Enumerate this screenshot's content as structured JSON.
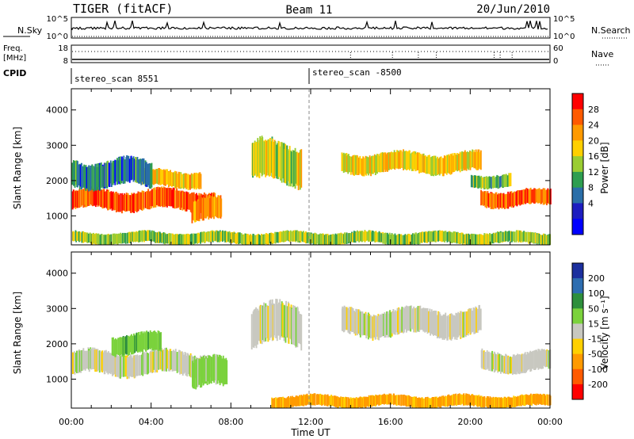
{
  "header": {
    "radar": "TIGER (fitACF)",
    "beam": "Beam 11",
    "date": "20/Jun/2010"
  },
  "panels": {
    "nsky": {
      "label": "N.Sky",
      "tick_top": "10^5",
      "tick_bottom": "10^0"
    },
    "nsearch": {
      "label": "N.Search",
      "tick_top": "10^5",
      "tick_bottom": "10^0"
    },
    "freq": {
      "label_line1": "Freq.",
      "label_line2": "[MHz]",
      "tick_top": "18",
      "tick_bottom": "8"
    },
    "nave": {
      "label": "Nave",
      "tick_top": "60",
      "tick_bottom": "0"
    },
    "cpid": {
      "label": "CPID",
      "entries": [
        {
          "time_h": 0.0,
          "text": "stereo_scan 8551"
        },
        {
          "time_h": 12.0,
          "text": "stereo_scan -8500"
        }
      ]
    }
  },
  "colorbars": {
    "power": {
      "label": "Power [dB]",
      "ticks": [
        "28",
        "24",
        "20",
        "16",
        "12",
        "8",
        "4"
      ],
      "colors": [
        "#ff0000",
        "#ff5a00",
        "#ff9a00",
        "#ffd000",
        "#9acd32",
        "#2e9e50",
        "#2a6ea8",
        "#1d1dc0",
        "#0000ff"
      ]
    },
    "velocity": {
      "label": "Velocity [m s⁻¹]",
      "ticks": [
        "200",
        "100",
        "50",
        "15",
        "-15",
        "-50",
        "-100",
        "-200"
      ],
      "colors": [
        "#1b2f9e",
        "#2d6db0",
        "#2e8f3c",
        "#7bd23c",
        "#c8c8c0",
        "#ffd000",
        "#ff9a00",
        "#ff5a00",
        "#ff0000"
      ]
    }
  },
  "chart_data": [
    {
      "type": "heatmap",
      "title": "Power",
      "ylabel": "Slant Range [km]",
      "xlim_hours": [
        0,
        24
      ],
      "ylim_km": [
        180,
        4600
      ],
      "yticks": [
        "1000",
        "2000",
        "3000",
        "4000"
      ],
      "units": "dB",
      "regions": [
        {
          "t0": 0.0,
          "t1": 7.2,
          "r_lo": 1150,
          "r_hi": 1750,
          "value": 26
        },
        {
          "t0": 3.5,
          "t1": 6.5,
          "r_lo": 1800,
          "r_hi": 2300,
          "value": 20
        },
        {
          "t0": 6.0,
          "t1": 7.5,
          "r_lo": 800,
          "r_hi": 1500,
          "value": 22
        },
        {
          "t0": 0.0,
          "t1": 4.0,
          "r_lo": 1800,
          "r_hi": 2600,
          "value": 8
        },
        {
          "t0": 9.0,
          "t1": 11.5,
          "r_lo": 1900,
          "r_hi": 3100,
          "value": 16
        },
        {
          "t0": 13.5,
          "t1": 20.5,
          "r_lo": 2200,
          "r_hi": 2800,
          "value": 18
        },
        {
          "t0": 20.5,
          "t1": 24.0,
          "r_lo": 1250,
          "r_hi": 1750,
          "value": 26
        },
        {
          "t0": 20.0,
          "t1": 22.0,
          "r_lo": 1800,
          "r_hi": 2200,
          "value": 12
        },
        {
          "t0": 0.0,
          "t1": 24.0,
          "r_lo": 200,
          "r_hi": 550,
          "value": 14
        }
      ]
    },
    {
      "type": "heatmap",
      "title": "Velocity",
      "ylabel": "Slant Range [km]",
      "xlabel": "Time UT",
      "xlim_hours": [
        0,
        24
      ],
      "ylim_km": [
        180,
        4600
      ],
      "yticks": [
        "1000",
        "2000",
        "3000",
        "4000"
      ],
      "xticks": [
        "00:00",
        "04:00",
        "08:00",
        "12:00",
        "16:00",
        "20:00",
        "00:00"
      ],
      "units": "m s-1",
      "regions": [
        {
          "t0": 0.0,
          "t1": 7.0,
          "r_lo": 1100,
          "r_hi": 1800,
          "value": 0
        },
        {
          "t0": 2.0,
          "t1": 4.5,
          "r_lo": 1700,
          "r_hi": 2300,
          "value": 35
        },
        {
          "t0": 6.0,
          "t1": 7.8,
          "r_lo": 700,
          "r_hi": 1600,
          "value": 30
        },
        {
          "t0": 9.0,
          "t1": 11.5,
          "r_lo": 1900,
          "r_hi": 3100,
          "value": 0
        },
        {
          "t0": 13.5,
          "t1": 20.5,
          "r_lo": 2200,
          "r_hi": 3000,
          "value": 0
        },
        {
          "t0": 20.5,
          "t1": 24.0,
          "r_lo": 1200,
          "r_hi": 1800,
          "value": 0
        },
        {
          "t0": 10.0,
          "t1": 24.0,
          "r_lo": 200,
          "r_hi": 550,
          "value": -60
        }
      ]
    }
  ]
}
